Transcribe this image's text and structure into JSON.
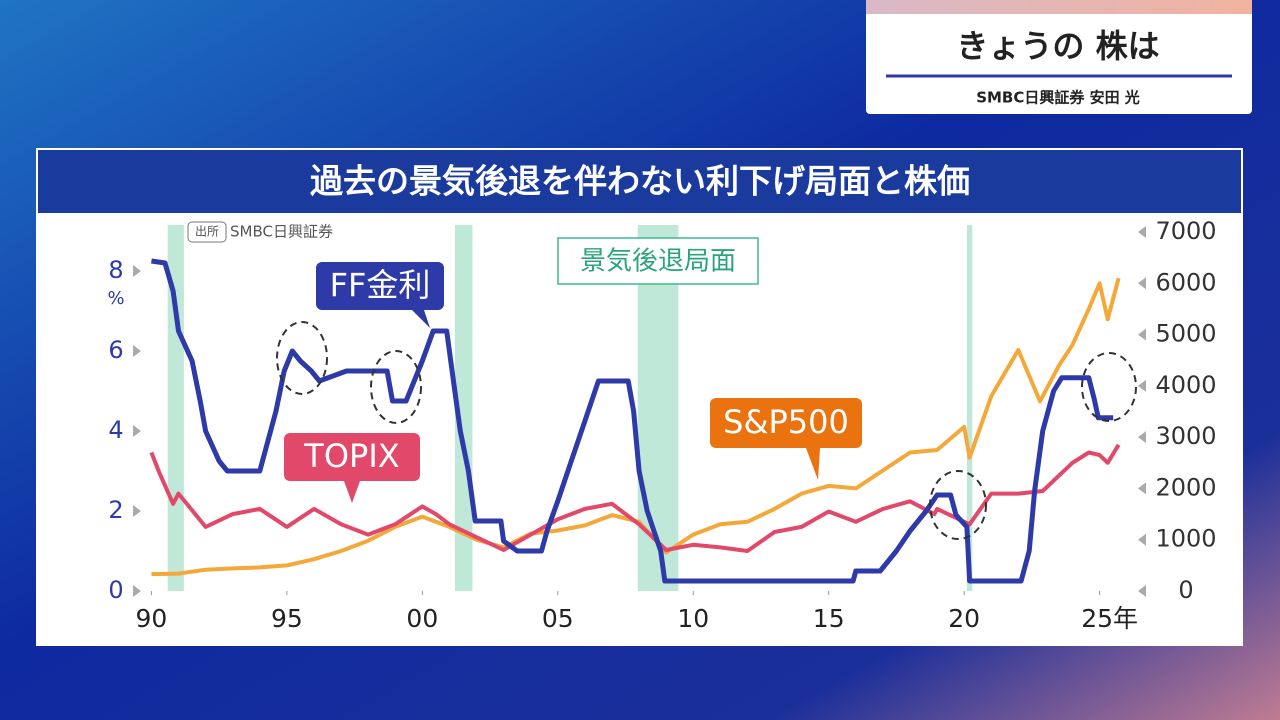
{
  "program_title": "きょうの 株は",
  "guest": "SMBC日興証券 安田 光",
  "chart_data": {
    "type": "line",
    "title": "過去の景気後退を伴わない利下げ局面と株価",
    "source_tag": "出所",
    "source": "SMBC日興証券",
    "y_unit": "%",
    "recession_label": "景気後退局面",
    "recessions": [
      [
        1990.6,
        1991.2
      ],
      [
        2001.2,
        2001.85
      ],
      [
        2007.95,
        2009.45
      ],
      [
        2020.1,
        2020.3
      ]
    ],
    "xlim": [
      1989.8,
      2025.9
    ],
    "xticks": [
      {
        "value": 1990,
        "label": "90"
      },
      {
        "value": 1995,
        "label": "95"
      },
      {
        "value": 2000,
        "label": "00"
      },
      {
        "value": 2005,
        "label": "05"
      },
      {
        "value": 2010,
        "label": "10"
      },
      {
        "value": 2015,
        "label": "15"
      },
      {
        "value": 2020,
        "label": "20"
      },
      {
        "value": 2025,
        "label": "25年"
      }
    ],
    "ylim": [
      0,
      9
    ],
    "yticks": [
      0,
      2,
      4,
      6,
      8
    ],
    "y2lim": [
      0,
      7020
    ],
    "y2ticks": [
      0,
      1000,
      2000,
      3000,
      4000,
      5000,
      6000,
      7000
    ],
    "series": [
      {
        "name": "FF金利",
        "color": "#2d3aa8",
        "x": [
          1990.0,
          1990.5,
          1990.8,
          1991.0,
          1991.5,
          1991.8,
          1992.0,
          1992.5,
          1992.8,
          1994.0,
          1994.3,
          1994.6,
          1994.9,
          1995.2,
          1995.5,
          1995.9,
          1996.2,
          1997.2,
          1998.7,
          1998.9,
          1999.4,
          1999.7,
          2000.0,
          2000.4,
          2000.9,
          2001.1,
          2001.4,
          2001.7,
          2001.95,
          2002.9,
          2003.0,
          2003.5,
          2004.4,
          2004.6,
          2005.0,
          2005.5,
          2006.0,
          2006.5,
          2007.6,
          2007.8,
          2008.0,
          2008.3,
          2008.8,
          2008.95,
          2015.9,
          2016.0,
          2016.9,
          2017.5,
          2018.0,
          2018.6,
          2019.0,
          2019.5,
          2019.7,
          2020.1,
          2020.2,
          2022.1,
          2022.4,
          2022.6,
          2022.9,
          2023.3,
          2023.6,
          2024.6,
          2024.8,
          2024.95,
          2025.5
        ],
        "values": [
          8.25,
          8.2,
          7.5,
          6.5,
          5.75,
          4.75,
          4.0,
          3.25,
          3.0,
          3.0,
          3.75,
          4.5,
          5.5,
          6.0,
          5.75,
          5.5,
          5.25,
          5.5,
          5.5,
          4.75,
          4.75,
          5.25,
          5.75,
          6.5,
          6.5,
          5.5,
          4.0,
          3.0,
          1.75,
          1.75,
          1.25,
          1.0,
          1.0,
          1.5,
          2.25,
          3.25,
          4.25,
          5.25,
          5.25,
          4.5,
          3.0,
          2.0,
          1.0,
          0.25,
          0.25,
          0.5,
          0.5,
          1.0,
          1.5,
          2.0,
          2.4,
          2.4,
          1.9,
          1.6,
          0.25,
          0.25,
          1.0,
          2.5,
          4.0,
          5.0,
          5.33,
          5.33,
          4.8,
          4.33,
          4.33
        ]
      },
      {
        "name": "TOPIX",
        "color": "#e2486a",
        "axis": "y2",
        "x": [
          1990.0,
          1990.3,
          1990.8,
          1991.0,
          1992.0,
          1993.0,
          1994.0,
          1995.0,
          1996.0,
          1997.0,
          1998.0,
          1999.0,
          2000.0,
          2000.5,
          2001.0,
          2002.0,
          2003.0,
          2004.0,
          2005.0,
          2006.0,
          2007.0,
          2008.0,
          2009.0,
          2010.0,
          2011.0,
          2012.0,
          2013.0,
          2014.0,
          2015.0,
          2016.0,
          2017.0,
          2018.0,
          2018.9,
          2019.0,
          2020.2,
          2021.0,
          2022.0,
          2022.9,
          2023.0,
          2024.0,
          2024.6,
          2025.0,
          2025.3,
          2025.7
        ],
        "values": [
          2700,
          2300,
          1700,
          1900,
          1250,
          1500,
          1600,
          1250,
          1600,
          1300,
          1100,
          1300,
          1650,
          1500,
          1300,
          1050,
          800,
          1100,
          1400,
          1600,
          1700,
          1300,
          800,
          900,
          850,
          780,
          1150,
          1250,
          1550,
          1350,
          1600,
          1750,
          1500,
          1600,
          1300,
          1900,
          1900,
          1950,
          2000,
          2500,
          2700,
          2650,
          2500,
          2850
        ]
      },
      {
        "name": "S&P500",
        "color": "#f5a83a",
        "axis": "y2",
        "x": [
          1990.0,
          1991.0,
          1992.0,
          1993.0,
          1994.0,
          1995.0,
          1996.0,
          1997.0,
          1998.0,
          1999.0,
          2000.0,
          2001.0,
          2002.0,
          2003.0,
          2004.0,
          2005.0,
          2006.0,
          2007.0,
          2008.0,
          2009.0,
          2010.0,
          2011.0,
          2012.0,
          2013.0,
          2014.0,
          2015.0,
          2016.0,
          2017.0,
          2018.0,
          2019.0,
          2020.0,
          2020.2,
          2021.0,
          2022.0,
          2022.8,
          2023.5,
          2024.0,
          2024.6,
          2025.0,
          2025.3,
          2025.7
        ],
        "values": [
          330,
          340,
          415,
          440,
          460,
          500,
          620,
          780,
          980,
          1250,
          1450,
          1250,
          1000,
          850,
          1120,
          1180,
          1280,
          1480,
          1350,
          750,
          1100,
          1300,
          1350,
          1600,
          1900,
          2050,
          2000,
          2350,
          2700,
          2750,
          3200,
          2600,
          3800,
          4700,
          3700,
          4400,
          4800,
          5500,
          6000,
          5300,
          6100
        ]
      }
    ]
  }
}
